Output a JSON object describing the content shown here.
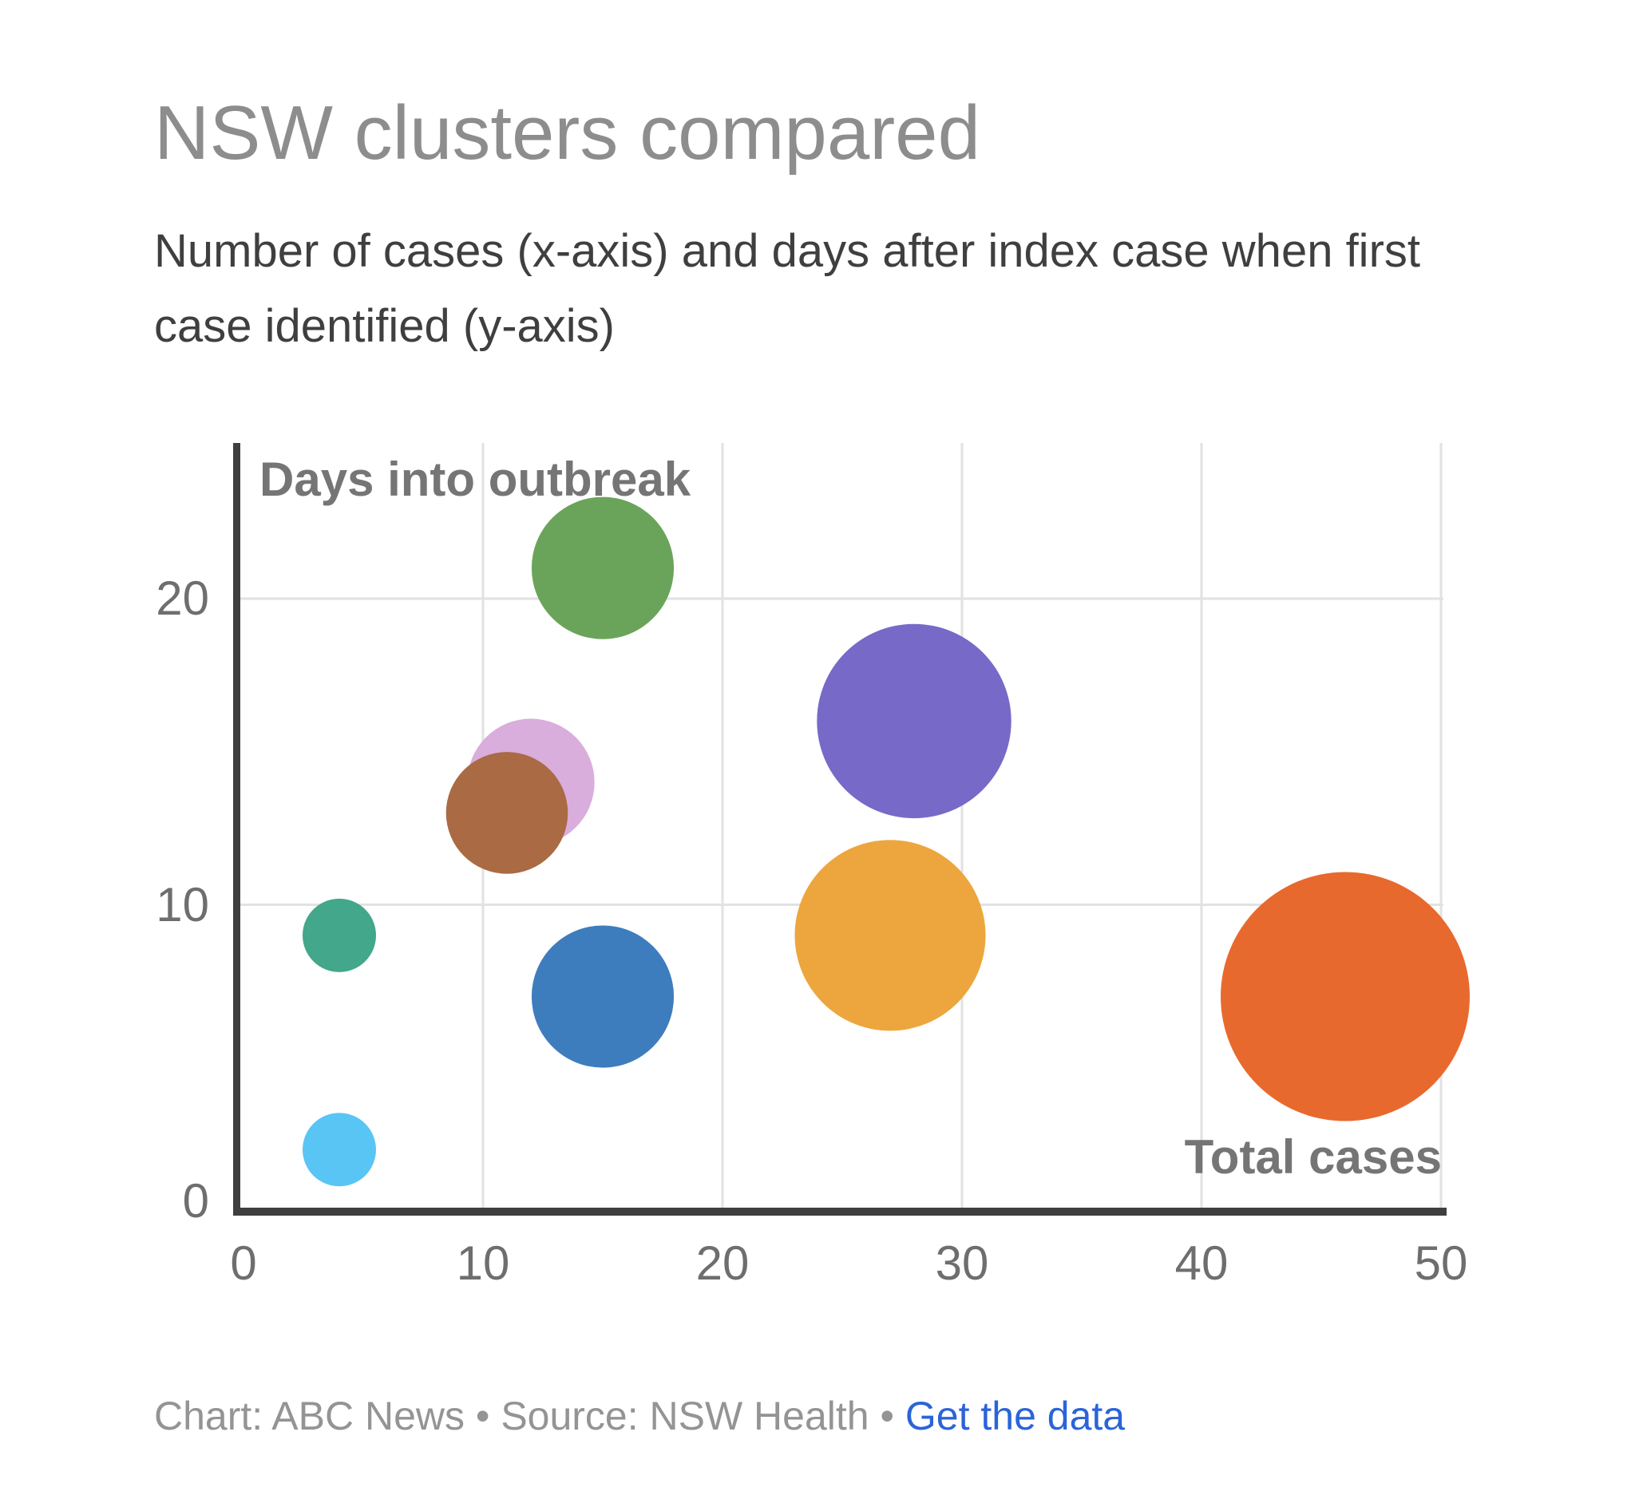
{
  "header": {
    "title": "NSW clusters compared",
    "subtitle": "Number of cases (x-axis) and days after index case when first case identified (y-axis)"
  },
  "chart_data": {
    "type": "scatter",
    "variant": "bubble",
    "title": "NSW clusters compared",
    "subtitle": "Number of cases (x-axis) and days after index case when first case identified (y-axis)",
    "x_axis": {
      "inner_label": "Total cases",
      "ticks": [
        0,
        10,
        20,
        30,
        40,
        50
      ],
      "range": [
        0,
        51.7
      ],
      "grid": true
    },
    "y_axis": {
      "inner_label": "Days into outbreak",
      "ticks": [
        0,
        10,
        20
      ],
      "range": [
        0,
        25.1
      ],
      "grid": true
    },
    "size_encoding": "bubble area proportional to total cases",
    "points": [
      {
        "total_cases": 15,
        "days_into_outbreak": 21,
        "color": "#6aa45a"
      },
      {
        "total_cases": 12,
        "days_into_outbreak": 14,
        "color": "#d9addc"
      },
      {
        "total_cases": 11,
        "days_into_outbreak": 13,
        "color": "#aa6a43"
      },
      {
        "total_cases": 28,
        "days_into_outbreak": 16,
        "color": "#7769c8"
      },
      {
        "total_cases": 4,
        "days_into_outbreak": 9,
        "color": "#42a78b"
      },
      {
        "total_cases": 15,
        "days_into_outbreak": 7,
        "color": "#3e7dbd"
      },
      {
        "total_cases": 27,
        "days_into_outbreak": 9,
        "color": "#eda63d"
      },
      {
        "total_cases": 4,
        "days_into_outbreak": 2,
        "color": "#59c5f4"
      },
      {
        "total_cases": 46,
        "days_into_outbreak": 7,
        "color": "#e8692d"
      }
    ]
  },
  "style": {
    "grid_color": "#e2e2e2",
    "axis_color": "#3f3f3f",
    "tick_text_color": "#6e6e6e",
    "inner_label_color": "#757575",
    "title_color": "#8d8d8d",
    "subtitle_color": "#3f3f3f",
    "footer_color": "#949494",
    "link_color": "#2b64d8"
  },
  "footer": {
    "credit": "Chart: ABC News",
    "sep1": " • ",
    "source": "Source: NSW Health",
    "sep2": " • ",
    "link_label": "Get the data"
  }
}
